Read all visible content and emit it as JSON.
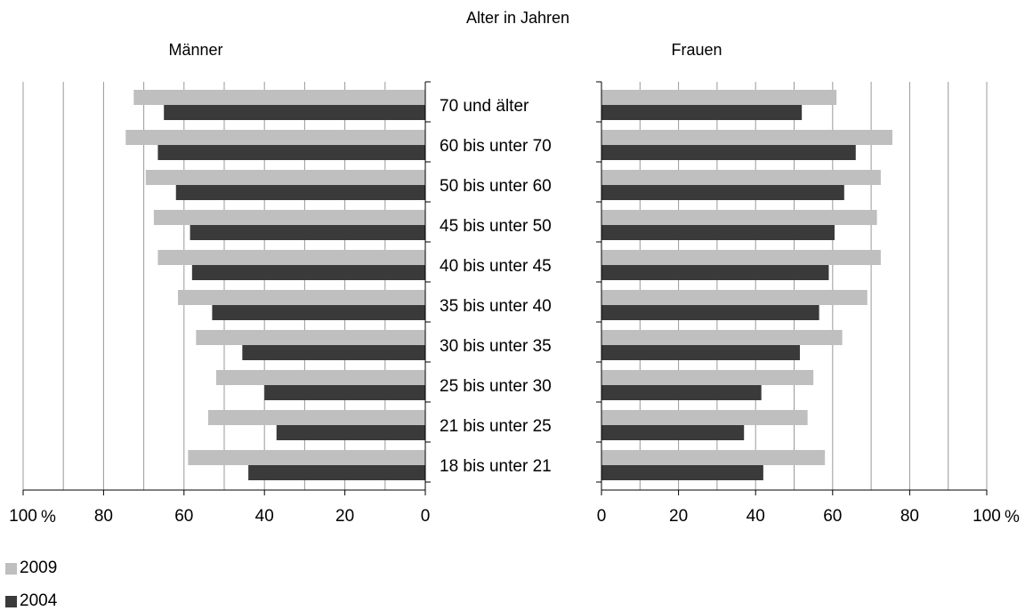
{
  "chart_data": {
    "type": "bar",
    "orientation": "horizontal",
    "layout": "population-pyramid",
    "title": "Alter in Jahren",
    "unit_label": "%",
    "panels": [
      {
        "name": "Männer",
        "direction": "left",
        "xlim": [
          0,
          100
        ],
        "ticks": [
          100,
          80,
          60,
          40,
          20,
          0
        ]
      },
      {
        "name": "Frauen",
        "direction": "right",
        "xlim": [
          0,
          100
        ],
        "ticks": [
          0,
          20,
          40,
          60,
          80,
          100
        ]
      }
    ],
    "categories": [
      "70 und älter",
      "60 bis unter 70",
      "50 bis unter 60",
      "45 bis unter 50",
      "40 bis unter 45",
      "35 bis unter 40",
      "30 bis unter 35",
      "25 bis unter 30",
      "21 bis unter 25",
      "18 bis unter 21"
    ],
    "series": [
      {
        "name": "2009",
        "color": "#bfbfbf",
        "maenner": [
          72.5,
          74.5,
          69.5,
          67.5,
          66.5,
          61.5,
          57,
          52,
          54,
          59
        ],
        "frauen": [
          61,
          75.5,
          72.5,
          71.5,
          72.5,
          69,
          62.5,
          55,
          53.5,
          58
        ]
      },
      {
        "name": "2004",
        "color": "#3a3a3a",
        "maenner": [
          65,
          66.5,
          62,
          58.5,
          58,
          53,
          45.5,
          40,
          37,
          44
        ],
        "frauen": [
          52,
          66,
          63,
          60.5,
          59,
          56.5,
          51.5,
          41.5,
          37,
          42
        ]
      }
    ],
    "grid": true,
    "legend_position": "bottom-left"
  }
}
